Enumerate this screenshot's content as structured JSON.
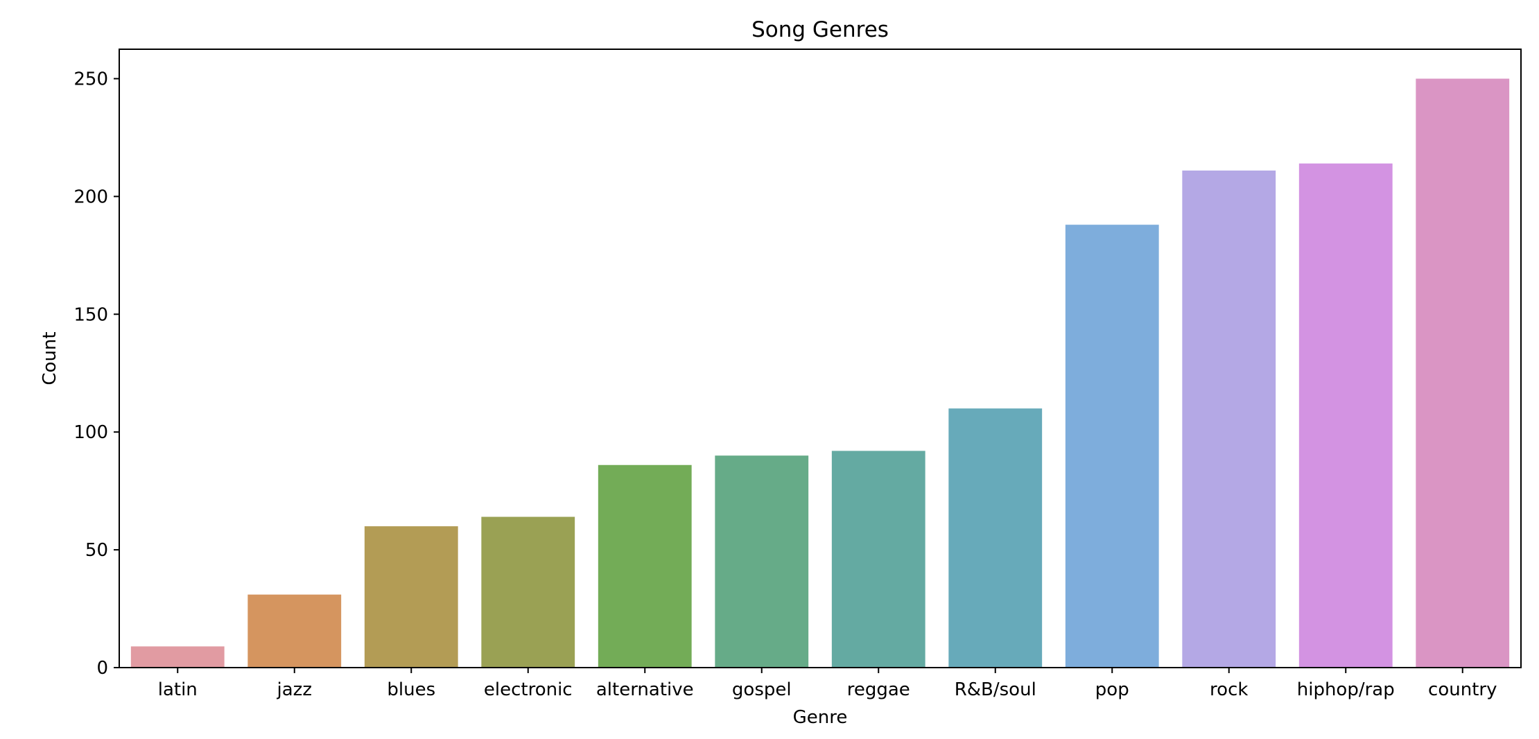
{
  "chart_data": {
    "type": "bar",
    "title": "Song Genres",
    "xlabel": "Genre",
    "ylabel": "Count",
    "categories": [
      "latin",
      "jazz",
      "blues",
      "electronic",
      "alternative",
      "gospel",
      "reggae",
      "R&B/soul",
      "pop",
      "rock",
      "hiphop/rap",
      "country"
    ],
    "values": [
      9,
      31,
      60,
      64,
      86,
      90,
      92,
      110,
      188,
      211,
      214,
      250
    ],
    "colors": [
      "#e19ba2",
      "#d5955f",
      "#b39c55",
      "#9aa154",
      "#73ac57",
      "#66ab88",
      "#64aaa2",
      "#67aaba",
      "#7eaddc",
      "#b4a8e5",
      "#d393e2",
      "#da95c4"
    ],
    "ylim": [
      0,
      262.5
    ],
    "yticks": [
      0,
      50,
      100,
      150,
      200,
      250
    ],
    "grid": false,
    "legend": false
  }
}
